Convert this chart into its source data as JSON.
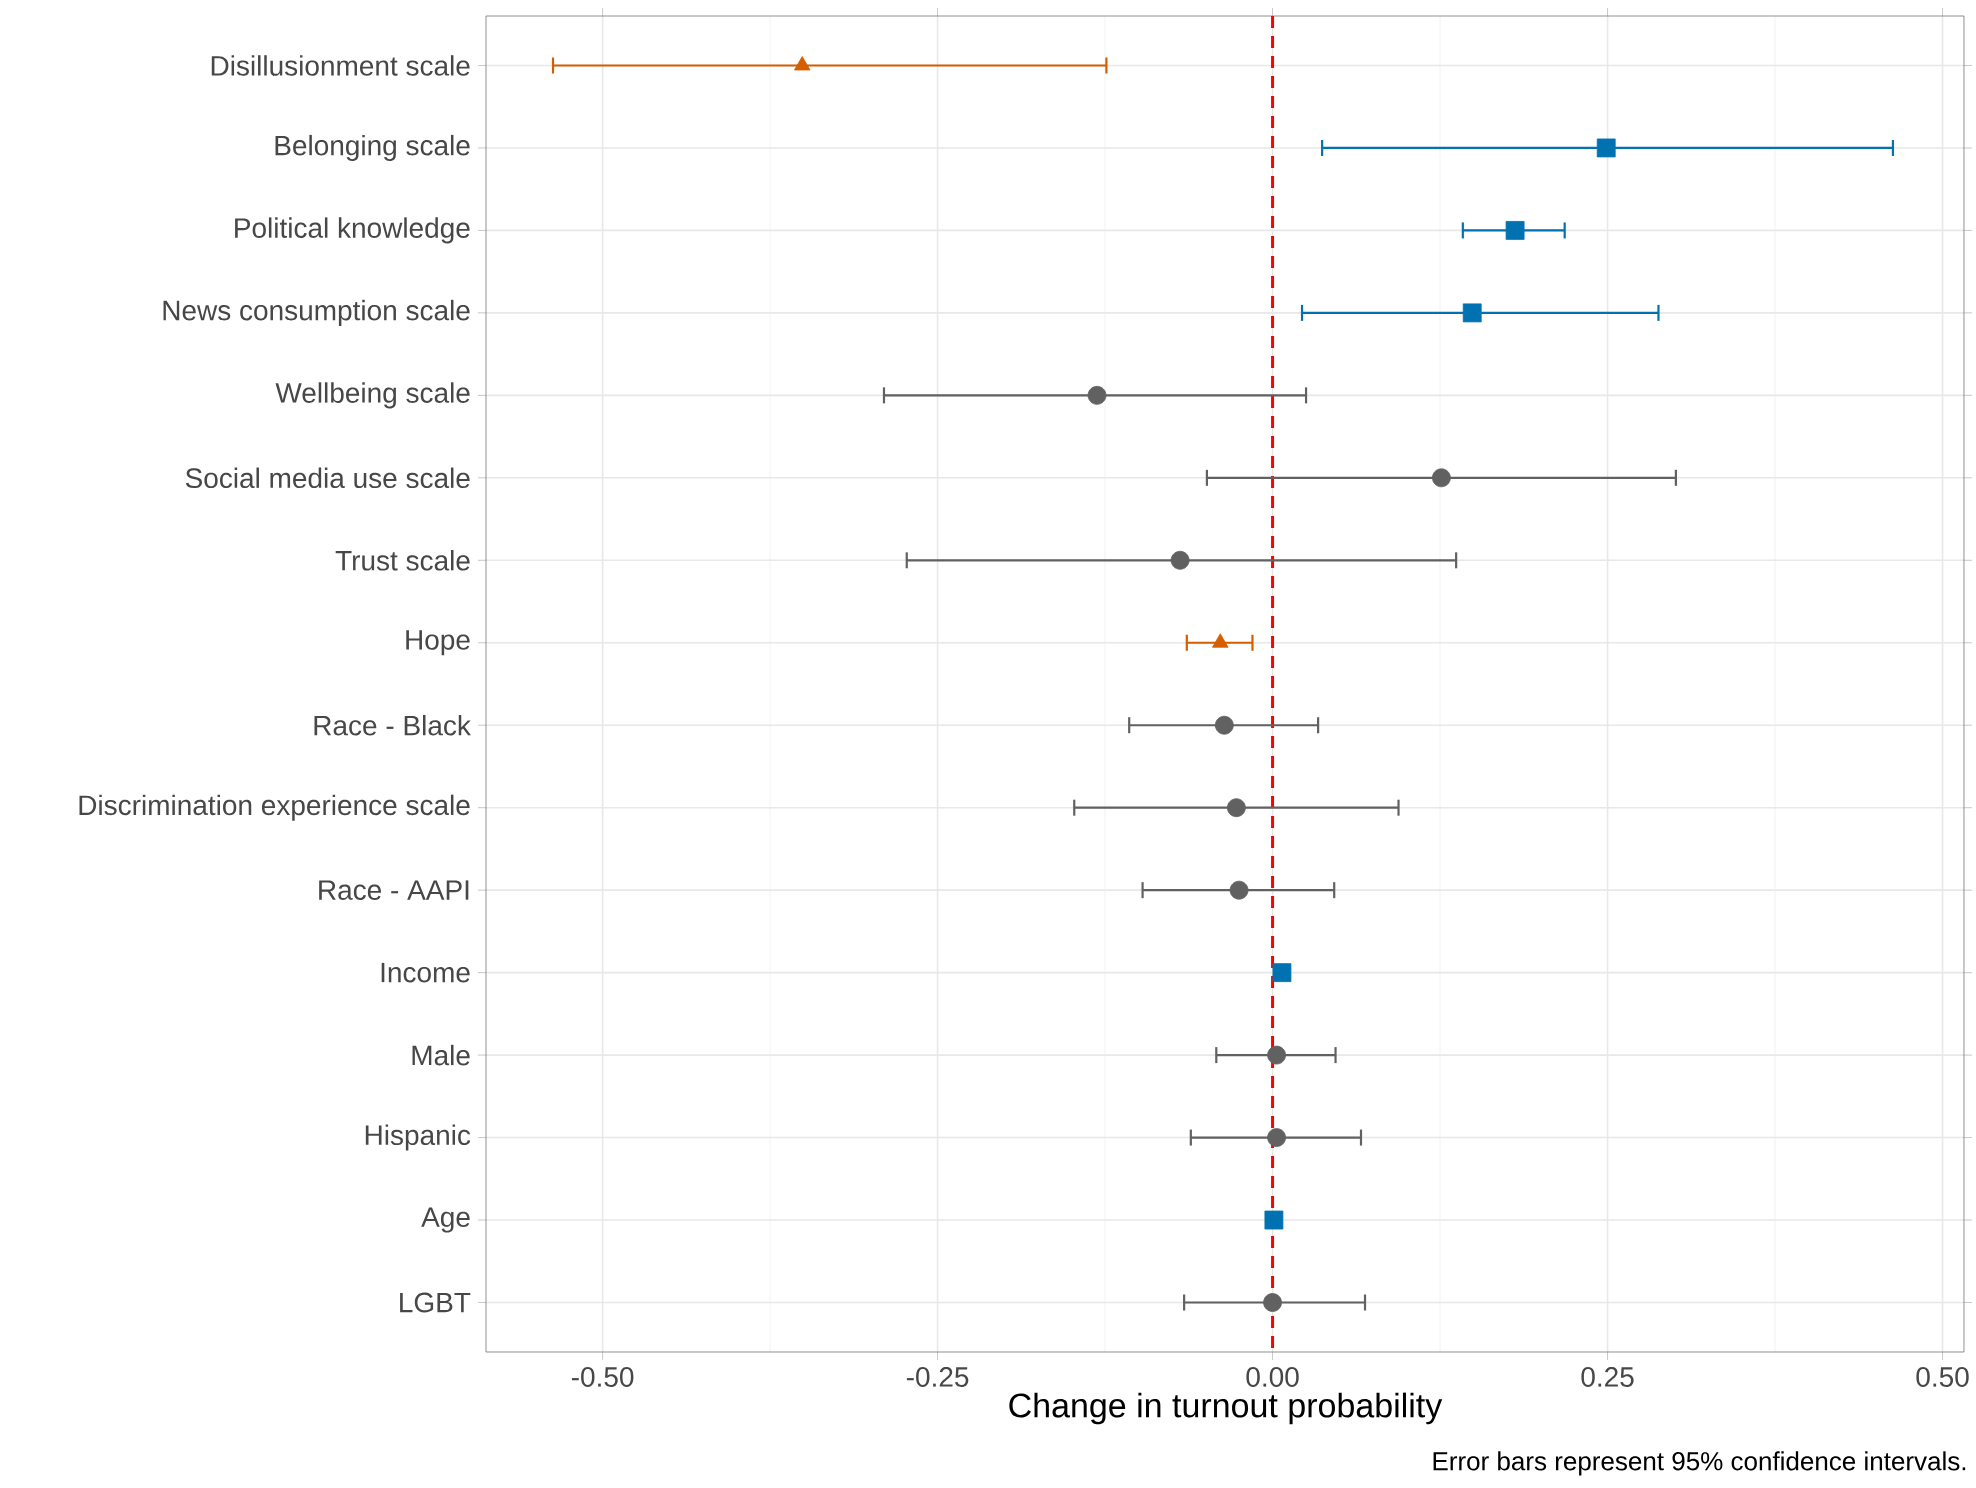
{
  "chart_data": {
    "type": "scatter",
    "orientation": "horizontal",
    "xlabel": "Change in turnout probability",
    "categories": [
      "Disillusionment scale",
      "Belonging scale",
      "Political knowledge",
      "News consumption scale",
      "Wellbeing scale",
      "Social media use scale",
      "Trust scale",
      "Hope",
      "Race - Black",
      "Discrimination experience scale",
      "Race - AAPI",
      "Income",
      "Male",
      "Hispanic",
      "Age",
      "LGBT"
    ],
    "series": [
      {
        "color": "#d55e00",
        "marker": "triangle",
        "values": [
          -0.351,
          null,
          null,
          null,
          null,
          null,
          null,
          -0.039,
          null,
          null,
          null,
          null,
          null,
          null,
          null,
          null
        ],
        "errors": [
          [
            -0.537,
            -0.124
          ],
          null,
          null,
          null,
          null,
          null,
          null,
          [
            -0.064,
            -0.015
          ],
          null,
          null,
          null,
          null,
          null,
          null,
          null,
          null
        ]
      },
      {
        "color": "#0072b2",
        "marker": "square",
        "values": [
          null,
          0.249,
          0.181,
          0.149,
          null,
          null,
          null,
          null,
          null,
          null,
          null,
          0.007,
          null,
          null,
          0.001,
          null
        ],
        "errors": [
          null,
          [
            0.037,
            0.463
          ],
          [
            0.142,
            0.218
          ],
          [
            0.022,
            0.288
          ],
          null,
          null,
          null,
          null,
          null,
          null,
          null,
          null,
          null,
          null,
          null,
          null
        ]
      },
      {
        "color": "#616161",
        "marker": "circle",
        "values": [
          null,
          null,
          null,
          null,
          -0.131,
          0.126,
          -0.069,
          null,
          -0.036,
          -0.027,
          -0.025,
          null,
          0.003,
          0.003,
          null,
          0.0
        ],
        "errors": [
          null,
          null,
          null,
          null,
          [
            -0.29,
            0.025
          ],
          [
            -0.049,
            0.301
          ],
          [
            -0.273,
            0.137
          ],
          null,
          [
            -0.107,
            0.034
          ],
          [
            -0.148,
            0.094
          ],
          [
            -0.097,
            0.046
          ],
          null,
          [
            -0.042,
            0.047
          ],
          [
            -0.061,
            0.066
          ],
          null,
          [
            -0.066,
            0.069
          ]
        ]
      }
    ],
    "xlim": [
      -0.587,
      0.516
    ],
    "xticks": [
      {
        "value": -0.5,
        "label": "-0.50"
      },
      {
        "value": -0.25,
        "label": "-0.25"
      },
      {
        "value": 0,
        "label": "0.00"
      },
      {
        "value": 0.25,
        "label": "0.25"
      },
      {
        "value": 0.5,
        "label": "0.50"
      }
    ],
    "grid": true,
    "ref_lines": [
      {
        "axis": "x",
        "value": 0,
        "color": "#ff0000",
        "line_style": "dashed"
      }
    ],
    "annotations": [
      "Error bars represent 95% confidence intervals."
    ]
  }
}
